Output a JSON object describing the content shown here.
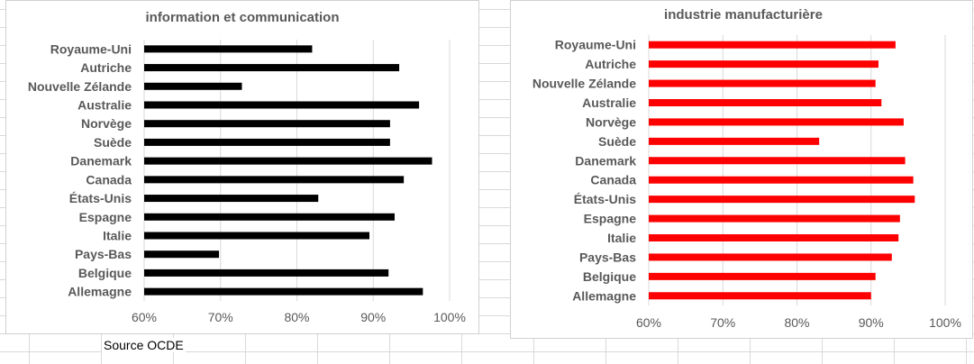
{
  "source": "Source OCDE",
  "chart_data": [
    {
      "type": "bar",
      "orientation": "horizontal",
      "title": "information et communication",
      "categories": [
        "Royaume-Uni",
        "Autriche",
        "Nouvelle Zélande",
        "Australie",
        "Norvège",
        "Suède",
        "Danemark",
        "Canada",
        "États-Unis",
        "Espagne",
        "Italie",
        "Pays-Bas",
        "Belgique",
        "Allemagne"
      ],
      "values": [
        82,
        93.4,
        72.8,
        96,
        92.2,
        92.2,
        97.7,
        94,
        82.8,
        92.8,
        89.5,
        69.8,
        92,
        96.5
      ],
      "xlim": [
        60,
        100
      ],
      "xticks": [
        "60%",
        "70%",
        "80%",
        "90%",
        "100%"
      ],
      "bar_color": "#000000",
      "grid": true
    },
    {
      "type": "bar",
      "orientation": "horizontal",
      "title": "industrie manufacturière",
      "categories": [
        "Royaume-Uni",
        "Autriche",
        "Nouvelle Zélande",
        "Australie",
        "Norvège",
        "Suède",
        "Danemark",
        "Canada",
        "États-Unis",
        "Espagne",
        "Italie",
        "Pays-Bas",
        "Belgique",
        "Allemagne"
      ],
      "values": [
        93.3,
        91,
        90.6,
        91.4,
        94.4,
        83,
        94.6,
        95.7,
        95.9,
        93.9,
        93.7,
        92.8,
        90.6,
        90
      ],
      "xlim": [
        60,
        100
      ],
      "xticks": [
        "60%",
        "70%",
        "80%",
        "90%",
        "100%"
      ],
      "bar_color": "#ff0000",
      "grid": true
    }
  ]
}
